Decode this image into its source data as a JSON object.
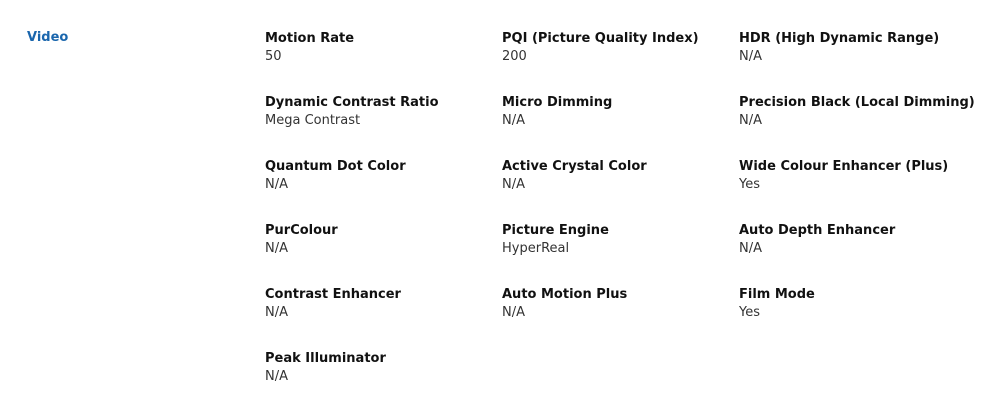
{
  "section": {
    "title": "Video"
  },
  "specs": [
    {
      "label": "Motion Rate",
      "value": "50"
    },
    {
      "label": "PQI (Picture Quality Index)",
      "value": "200"
    },
    {
      "label": "HDR (High Dynamic Range)",
      "value": "N/A"
    },
    {
      "label": "Dynamic Contrast Ratio",
      "value": "Mega Contrast"
    },
    {
      "label": "Micro Dimming",
      "value": "N/A"
    },
    {
      "label": "Precision Black (Local Dimming)",
      "value": "N/A"
    },
    {
      "label": "Quantum Dot Color",
      "value": "N/A"
    },
    {
      "label": "Active Crystal Color",
      "value": "N/A"
    },
    {
      "label": "Wide Colour Enhancer (Plus)",
      "value": "Yes"
    },
    {
      "label": "PurColour",
      "value": "N/A"
    },
    {
      "label": "Picture Engine",
      "value": "HyperReal"
    },
    {
      "label": "Auto Depth Enhancer",
      "value": "N/A"
    },
    {
      "label": "Contrast Enhancer",
      "value": "N/A"
    },
    {
      "label": "Auto Motion Plus",
      "value": "N/A"
    },
    {
      "label": "Film Mode",
      "value": "Yes"
    },
    {
      "label": "Peak Illuminator",
      "value": "N/A"
    }
  ]
}
